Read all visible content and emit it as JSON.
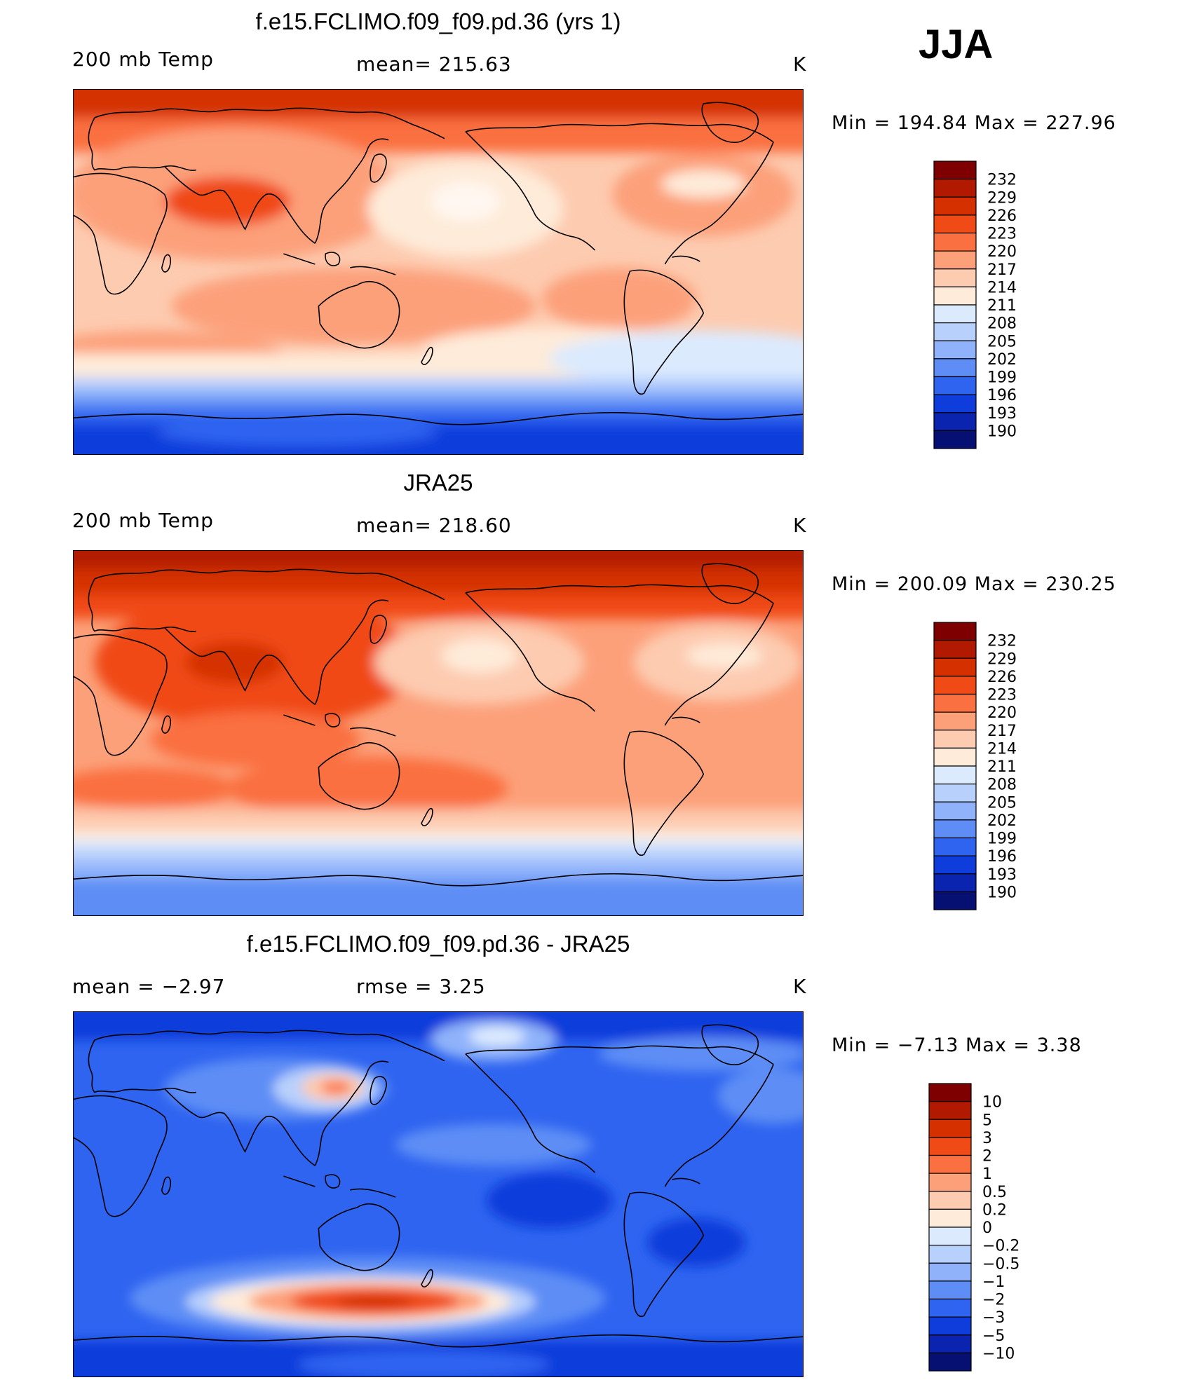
{
  "season": "JJA",
  "panels": [
    {
      "title": "f.e15.FCLIMO.f09_f09.pd.36 (yrs 1)",
      "left_label": "200 mb Temp",
      "center_label": "mean= 215.63",
      "units": "K",
      "minmax": "Min = 194.84 Max = 227.96",
      "colorbar_labels": [
        "232",
        "229",
        "226",
        "223",
        "220",
        "217",
        "214",
        "211",
        "208",
        "205",
        "202",
        "199",
        "196",
        "193",
        "190"
      ],
      "colorbar_colors": [
        "#7f0000",
        "#b21a00",
        "#d43000",
        "#f04a16",
        "#fa7040",
        "#fca07a",
        "#fdcbb0",
        "#feebd9",
        "#dceafe",
        "#b8d0fc",
        "#8fb2fa",
        "#5d8df5",
        "#2f64f0",
        "#0e3ddb",
        "#0a24b0",
        "#061073"
      ]
    },
    {
      "title": "JRA25",
      "left_label": "200 mb Temp",
      "center_label": "mean= 218.60",
      "units": "K",
      "minmax": "Min = 200.09 Max = 230.25",
      "colorbar_labels": [
        "232",
        "229",
        "226",
        "223",
        "220",
        "217",
        "214",
        "211",
        "208",
        "205",
        "202",
        "199",
        "196",
        "193",
        "190"
      ],
      "colorbar_colors": [
        "#7f0000",
        "#b21a00",
        "#d43000",
        "#f04a16",
        "#fa7040",
        "#fca07a",
        "#fdcbb0",
        "#feebd9",
        "#dceafe",
        "#b8d0fc",
        "#8fb2fa",
        "#5d8df5",
        "#2f64f0",
        "#0e3ddb",
        "#0a24b0",
        "#061073"
      ]
    },
    {
      "title": "f.e15.FCLIMO.f09_f09.pd.36 - JRA25",
      "left_label": "mean =   −2.97",
      "center_label": "rmse =    3.25",
      "units": "K",
      "minmax": "Min =   −7.13 Max =    3.38",
      "colorbar_labels": [
        "10",
        "5",
        "3",
        "2",
        "1",
        "0.5",
        "0.2",
        "0",
        "−0.2",
        "−0.5",
        "−1",
        "−2",
        "−3",
        "−5",
        "−10"
      ],
      "colorbar_colors": [
        "#7f0000",
        "#b21a00",
        "#d43000",
        "#f04a16",
        "#fa7040",
        "#fca07a",
        "#fdcbb0",
        "#feebd9",
        "#dceafe",
        "#b8d0fc",
        "#8fb2fa",
        "#5d8df5",
        "#2f64f0",
        "#0e3ddb",
        "#0a24b0",
        "#061073"
      ]
    }
  ]
}
